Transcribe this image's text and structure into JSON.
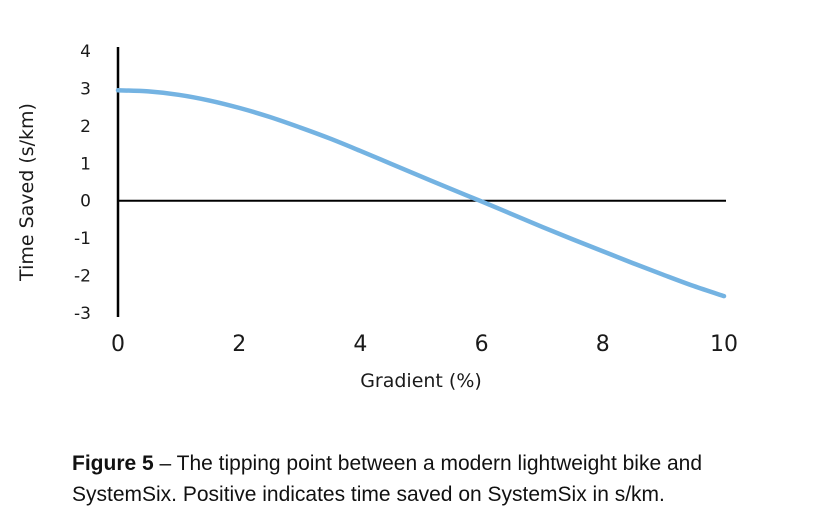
{
  "chart_data": {
    "type": "line",
    "title": "",
    "xlabel": "Gradient (%)",
    "ylabel": "Time Saved (s/km)",
    "xlim": [
      0,
      10
    ],
    "ylim": [
      -3,
      4
    ],
    "xticks": [
      "0",
      "2",
      "4",
      "6",
      "8",
      "10"
    ],
    "yticks": [
      "4",
      "3",
      "2",
      "1",
      "0",
      "-1",
      "-2",
      "-3"
    ],
    "grid": false,
    "legend": "none",
    "series": [
      {
        "color": "#74b3e2",
        "x": [
          0,
          0.5,
          1,
          1.5,
          2,
          2.5,
          3,
          3.5,
          4,
          4.5,
          5,
          5.5,
          6,
          6.5,
          7,
          7.5,
          8,
          8.5,
          9,
          9.5,
          10
        ],
        "y": [
          2.95,
          2.92,
          2.83,
          2.68,
          2.48,
          2.24,
          1.96,
          1.66,
          1.33,
          0.99,
          0.65,
          0.31,
          -0.02,
          -0.36,
          -0.7,
          -1.03,
          -1.35,
          -1.67,
          -1.98,
          -2.28,
          -2.55
        ]
      }
    ]
  },
  "caption": {
    "label": "Figure 5",
    "text": " – The tipping point between a modern lightweight bike and SystemSix. Positive indicates time saved on SystemSix in s/km."
  }
}
